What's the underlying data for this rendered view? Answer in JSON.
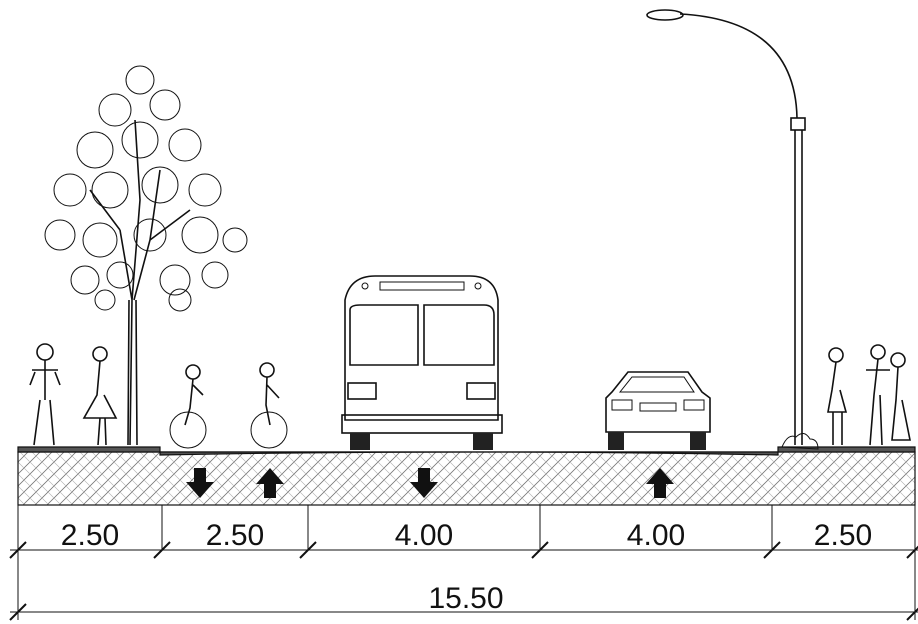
{
  "dimensions": {
    "segments": [
      "2.50",
      "2.50",
      "4.00",
      "4.00",
      "2.50"
    ],
    "total": "15.50"
  }
}
